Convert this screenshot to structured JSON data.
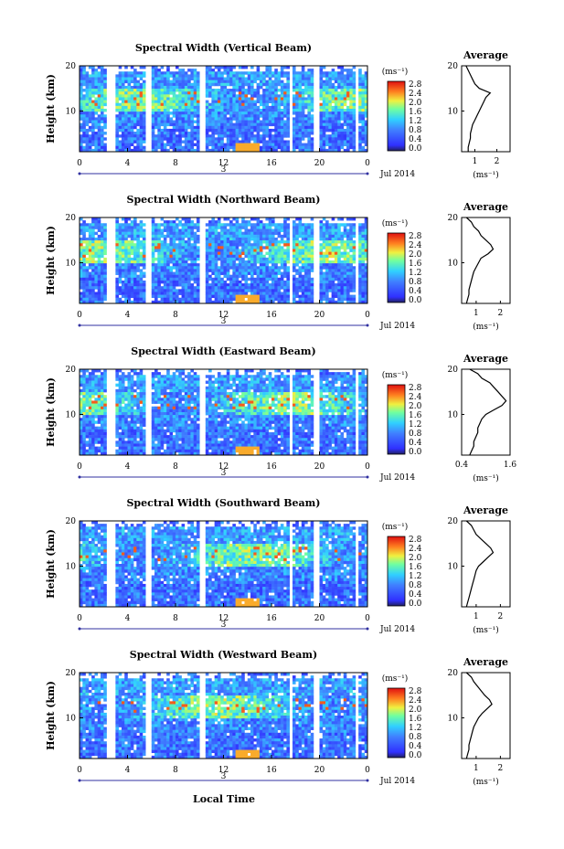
{
  "xlabel": "Local Time",
  "panels": [
    {
      "title": "Spectral Width (Vertical Beam)",
      "avg_xticks": [
        "1",
        "2"
      ],
      "avg_xrange": [
        0.4,
        2.6
      ]
    },
    {
      "title": "Spectral Width (Northward Beam)",
      "avg_xticks": [
        "1",
        "2"
      ],
      "avg_xrange": [
        0.4,
        2.4
      ]
    },
    {
      "title": "Spectral Width (Eastward Beam)",
      "avg_xticks": [
        "0.4",
        "1.6"
      ],
      "avg_xrange": [
        0.4,
        1.6
      ]
    },
    {
      "title": "Spectral Width (Southward Beam)",
      "avg_xticks": [
        "1",
        "2"
      ],
      "avg_xrange": [
        0.4,
        2.4
      ]
    },
    {
      "title": "Spectral Width (Westward Beam)",
      "avg_xticks": [
        "1",
        "2"
      ],
      "avg_xrange": [
        0.4,
        2.4
      ]
    }
  ],
  "chart_data": [
    {
      "type": "heatmap",
      "title": "Spectral Width (Vertical Beam)",
      "ylabel": "Height (km)",
      "xticks": [
        "0",
        "4",
        "8",
        "12",
        "16",
        "20",
        "0"
      ],
      "yticks": [
        "10",
        "20"
      ],
      "date_mark": "3",
      "date_label": "Jul 2014",
      "colorbar_unit": "(ms⁻¹)",
      "colorbar_ticks": [
        "0.0",
        "0.4",
        "0.8",
        "1.2",
        "1.6",
        "2.0",
        "2.4",
        "2.8"
      ],
      "data_gaps_hours": [
        [
          2.3,
          2.9
        ],
        [
          5.4,
          6.0
        ],
        [
          10.0,
          10.6
        ],
        [
          17.4,
          17.8
        ],
        [
          19.5,
          20.0
        ],
        [
          23.0,
          23.2
        ]
      ],
      "profile": {
        "title": "Average",
        "xlabel": "(ms⁻¹)",
        "yticks": [
          "10",
          "20"
        ],
        "xticks": [
          "1",
          "2"
        ]
      },
      "xlim": [
        0,
        24
      ],
      "ylim": [
        1,
        20
      ]
    },
    {
      "type": "heatmap",
      "title": "Spectral Width (Northward Beam)",
      "ylabel": "Height (km)",
      "xticks": [
        "0",
        "4",
        "8",
        "12",
        "16",
        "20",
        "0"
      ],
      "yticks": [
        "10",
        "20"
      ],
      "date_mark": "3",
      "date_label": "Jul 2014",
      "colorbar_unit": "(ms⁻¹)",
      "colorbar_ticks": [
        "0.0",
        "0.4",
        "0.8",
        "1.2",
        "1.6",
        "2.0",
        "2.4",
        "2.8"
      ],
      "data_gaps_hours": [
        [
          2.3,
          2.9
        ],
        [
          5.4,
          6.0
        ],
        [
          10.0,
          10.6
        ],
        [
          17.4,
          17.8
        ],
        [
          19.5,
          20.0
        ],
        [
          23.0,
          23.2
        ]
      ],
      "profile": {
        "title": "Average",
        "xlabel": "(ms⁻¹)",
        "yticks": [
          "10",
          "20"
        ],
        "xticks": [
          "1",
          "2"
        ]
      },
      "xlim": [
        0,
        24
      ],
      "ylim": [
        1,
        20
      ]
    },
    {
      "type": "heatmap",
      "title": "Spectral Width (Eastward Beam)",
      "ylabel": "Height (km)",
      "xticks": [
        "0",
        "4",
        "8",
        "12",
        "16",
        "20",
        "0"
      ],
      "yticks": [
        "10",
        "20"
      ],
      "date_mark": "3",
      "date_label": "Jul 2014",
      "colorbar_unit": "(ms⁻¹)",
      "colorbar_ticks": [
        "0.0",
        "0.4",
        "0.8",
        "1.2",
        "1.6",
        "2.0",
        "2.4",
        "2.8"
      ],
      "data_gaps_hours": [
        [
          2.3,
          2.9
        ],
        [
          5.4,
          6.0
        ],
        [
          10.0,
          10.6
        ],
        [
          17.4,
          17.8
        ],
        [
          19.5,
          20.0
        ],
        [
          23.0,
          23.2
        ]
      ],
      "profile": {
        "title": "Average",
        "xlabel": "(ms⁻¹)",
        "yticks": [
          "10",
          "20"
        ],
        "xticks": [
          "0.4",
          "1.6"
        ]
      },
      "xlim": [
        0,
        24
      ],
      "ylim": [
        1,
        20
      ]
    },
    {
      "type": "heatmap",
      "title": "Spectral Width (Southward Beam)",
      "ylabel": "Height (km)",
      "xticks": [
        "0",
        "4",
        "8",
        "12",
        "16",
        "20",
        "0"
      ],
      "yticks": [
        "10",
        "20"
      ],
      "date_mark": "3",
      "date_label": "Jul 2014",
      "colorbar_unit": "(ms⁻¹)",
      "colorbar_ticks": [
        "0.0",
        "0.4",
        "0.8",
        "1.2",
        "1.6",
        "2.0",
        "2.4",
        "2.8"
      ],
      "data_gaps_hours": [
        [
          2.3,
          2.9
        ],
        [
          5.4,
          6.0
        ],
        [
          10.0,
          10.6
        ],
        [
          17.4,
          17.8
        ],
        [
          19.5,
          20.0
        ],
        [
          23.0,
          23.2
        ]
      ],
      "profile": {
        "title": "Average",
        "xlabel": "(ms⁻¹)",
        "yticks": [
          "10",
          "20"
        ],
        "xticks": [
          "1",
          "2"
        ]
      },
      "xlim": [
        0,
        24
      ],
      "ylim": [
        1,
        20
      ]
    },
    {
      "type": "heatmap",
      "title": "Spectral Width (Westward Beam)",
      "ylabel": "Height (km)",
      "xticks": [
        "0",
        "4",
        "8",
        "12",
        "16",
        "20",
        "0"
      ],
      "yticks": [
        "10",
        "20"
      ],
      "date_mark": "3",
      "date_label": "Jul 2014",
      "colorbar_unit": "(ms⁻¹)",
      "colorbar_ticks": [
        "0.0",
        "0.4",
        "0.8",
        "1.2",
        "1.6",
        "2.0",
        "2.4",
        "2.8"
      ],
      "data_gaps_hours": [
        [
          2.3,
          2.9
        ],
        [
          5.4,
          6.0
        ],
        [
          10.0,
          10.6
        ],
        [
          17.4,
          17.8
        ],
        [
          19.5,
          20.0
        ],
        [
          23.0,
          23.2
        ]
      ],
      "profile": {
        "title": "Average",
        "xlabel": "(ms⁻¹)",
        "yticks": [
          "10",
          "20"
        ],
        "xticks": [
          "1",
          "2"
        ]
      },
      "xlim": [
        0,
        24
      ],
      "ylim": [
        1,
        20
      ]
    }
  ],
  "profiles": [
    {
      "heights": [
        1,
        2,
        3,
        4,
        5,
        6,
        7,
        8,
        9,
        10,
        11,
        12,
        13,
        14,
        15,
        16,
        17,
        18,
        19,
        20
      ],
      "values": [
        0.7,
        0.7,
        0.75,
        0.8,
        0.8,
        0.85,
        0.9,
        1.0,
        1.1,
        1.2,
        1.3,
        1.4,
        1.5,
        1.7,
        1.2,
        1.0,
        0.9,
        0.8,
        0.7,
        0.6
      ]
    },
    {
      "heights": [
        1,
        2,
        3,
        4,
        5,
        6,
        7,
        8,
        9,
        10,
        11,
        12,
        13,
        14,
        15,
        16,
        17,
        18,
        19,
        20
      ],
      "values": [
        0.6,
        0.65,
        0.7,
        0.7,
        0.75,
        0.8,
        0.85,
        0.9,
        1.0,
        1.1,
        1.2,
        1.5,
        1.7,
        1.6,
        1.4,
        1.2,
        1.1,
        0.9,
        0.8,
        0.6
      ]
    },
    {
      "heights": [
        1,
        2,
        3,
        4,
        5,
        6,
        7,
        8,
        9,
        10,
        11,
        12,
        13,
        14,
        15,
        16,
        17,
        18,
        19,
        20
      ],
      "values": [
        0.6,
        0.65,
        0.7,
        0.7,
        0.75,
        0.8,
        0.8,
        0.85,
        0.9,
        1.0,
        1.2,
        1.4,
        1.5,
        1.4,
        1.3,
        1.2,
        1.1,
        0.9,
        0.8,
        0.6
      ]
    },
    {
      "heights": [
        1,
        2,
        3,
        4,
        5,
        6,
        7,
        8,
        9,
        10,
        11,
        12,
        13,
        14,
        15,
        16,
        17,
        18,
        19,
        20
      ],
      "values": [
        0.6,
        0.65,
        0.7,
        0.75,
        0.8,
        0.85,
        0.9,
        0.95,
        1.0,
        1.1,
        1.3,
        1.5,
        1.7,
        1.6,
        1.4,
        1.2,
        1.0,
        0.9,
        0.8,
        0.6
      ]
    },
    {
      "heights": [
        1,
        2,
        3,
        4,
        5,
        6,
        7,
        8,
        9,
        10,
        11,
        12,
        13,
        14,
        15,
        16,
        17,
        18,
        19,
        20
      ],
      "values": [
        0.6,
        0.65,
        0.7,
        0.7,
        0.75,
        0.8,
        0.85,
        0.9,
        1.0,
        1.1,
        1.25,
        1.45,
        1.65,
        1.55,
        1.35,
        1.2,
        1.05,
        0.9,
        0.8,
        0.6
      ]
    }
  ]
}
